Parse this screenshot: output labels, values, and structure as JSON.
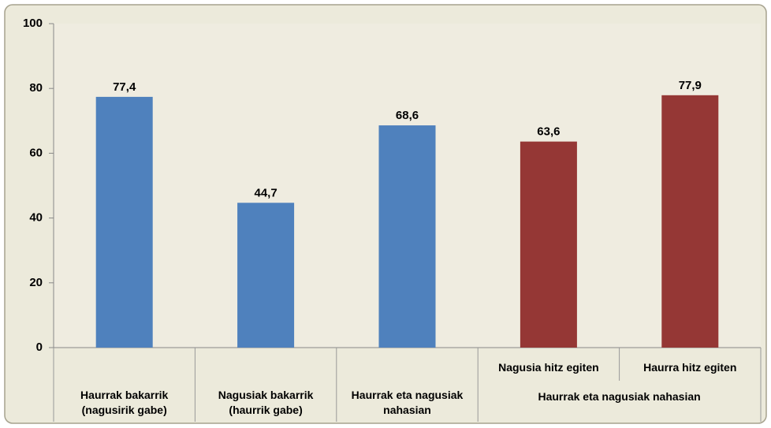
{
  "chart_data": {
    "type": "bar",
    "categories": [
      "Haurrak bakarrik (nagusirik gabe)",
      "Nagusiak bakarrik (haurrik gabe)",
      "Haurrak eta nagusiak nahasian",
      "Nagusia hitz egiten",
      "Haurra hitz egiten"
    ],
    "group_label": "Haurrak eta nagusiak nahasian",
    "values": [
      77.4,
      44.7,
      68.6,
      63.6,
      77.9
    ],
    "value_labels": [
      "77,4",
      "44,7",
      "68,6",
      "63,6",
      "77,9"
    ],
    "colors": [
      "#4f81bd",
      "#4f81bd",
      "#4f81bd",
      "#953735",
      "#953735"
    ],
    "ylim": [
      0,
      100
    ],
    "yticks": [
      0,
      20,
      40,
      60,
      80,
      100
    ],
    "grid": false
  }
}
